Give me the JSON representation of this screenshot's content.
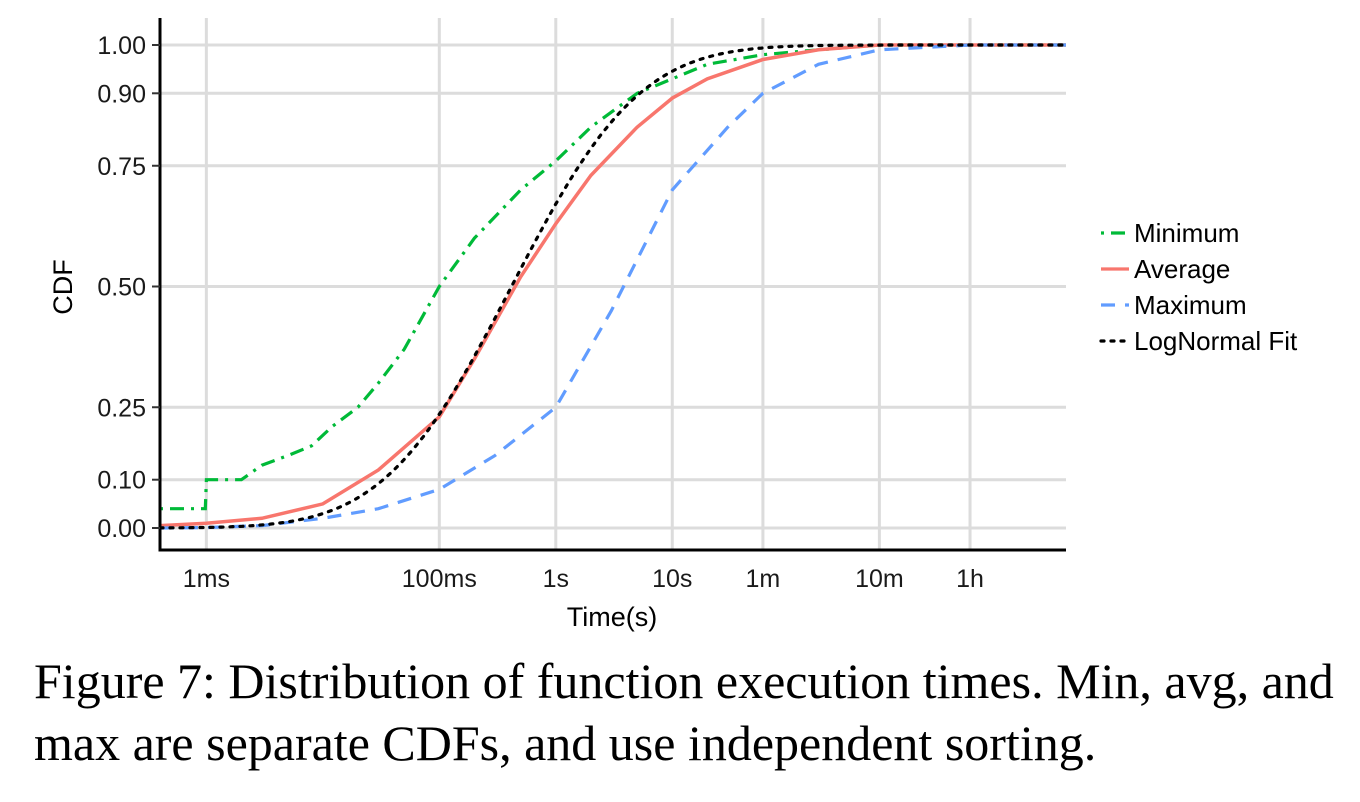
{
  "chart_data": {
    "type": "line",
    "xlabel": "Time(s)",
    "ylabel": "CDF",
    "x_scale": "log",
    "x_unit": "seconds",
    "xlim_seconds": [
      0.0004,
      24000
    ],
    "ylim": [
      0,
      1
    ],
    "x_ticks": [
      {
        "value": 0.001,
        "label": "1ms"
      },
      {
        "value": 0.1,
        "label": "100ms"
      },
      {
        "value": 1,
        "label": "1s"
      },
      {
        "value": 10,
        "label": "10s"
      },
      {
        "value": 60,
        "label": "1m"
      },
      {
        "value": 600,
        "label": "10m"
      },
      {
        "value": 3600,
        "label": "1h"
      }
    ],
    "y_ticks": [
      {
        "value": 0.0,
        "label": "0.00"
      },
      {
        "value": 0.1,
        "label": "0.10"
      },
      {
        "value": 0.25,
        "label": "0.25"
      },
      {
        "value": 0.5,
        "label": "0.50"
      },
      {
        "value": 0.75,
        "label": "0.75"
      },
      {
        "value": 0.9,
        "label": "0.90"
      },
      {
        "value": 1.0,
        "label": "1.00"
      }
    ],
    "grid": true,
    "legend_position": "right",
    "series": [
      {
        "name": "Minimum",
        "color": "#00ba38",
        "style": "dotdash",
        "x": [
          0.0004,
          0.00098,
          0.001,
          0.002,
          0.003,
          0.005,
          0.008,
          0.012,
          0.02,
          0.03,
          0.05,
          0.1,
          0.2,
          0.5,
          1,
          2,
          5,
          10,
          20,
          60,
          180,
          600,
          3600,
          24000
        ],
        "y": [
          0.04,
          0.04,
          0.1,
          0.1,
          0.13,
          0.15,
          0.17,
          0.21,
          0.25,
          0.3,
          0.37,
          0.5,
          0.6,
          0.7,
          0.76,
          0.83,
          0.9,
          0.93,
          0.96,
          0.98,
          0.99,
          1.0,
          1.0,
          1.0
        ]
      },
      {
        "name": "Average",
        "color": "#f8766d",
        "style": "solid",
        "x": [
          0.0004,
          0.001,
          0.003,
          0.01,
          0.03,
          0.1,
          0.2,
          0.5,
          1,
          2,
          5,
          10,
          20,
          60,
          180,
          600,
          3600,
          24000
        ],
        "y": [
          0.005,
          0.01,
          0.02,
          0.05,
          0.12,
          0.23,
          0.35,
          0.52,
          0.63,
          0.73,
          0.83,
          0.89,
          0.93,
          0.97,
          0.99,
          1.0,
          1.0,
          1.0
        ]
      },
      {
        "name": "Maximum",
        "color": "#619cff",
        "style": "dashed",
        "x": [
          0.0004,
          0.001,
          0.003,
          0.01,
          0.03,
          0.1,
          0.3,
          1,
          3,
          10,
          30,
          60,
          180,
          600,
          3600,
          24000
        ],
        "y": [
          0.0,
          0.001,
          0.005,
          0.02,
          0.04,
          0.08,
          0.15,
          0.25,
          0.45,
          0.7,
          0.83,
          0.9,
          0.96,
          0.99,
          1.0,
          1.0
        ]
      },
      {
        "name": "LogNormal Fit",
        "color": "#000000",
        "style": "dotted",
        "lognormal_params": {
          "mu_log10": -0.38,
          "sigma_log10": 0.86
        }
      }
    ]
  },
  "caption": "Figure 7: Distribution of function execution times. Min, avg, and max are separate CDFs, and use independent sorting."
}
